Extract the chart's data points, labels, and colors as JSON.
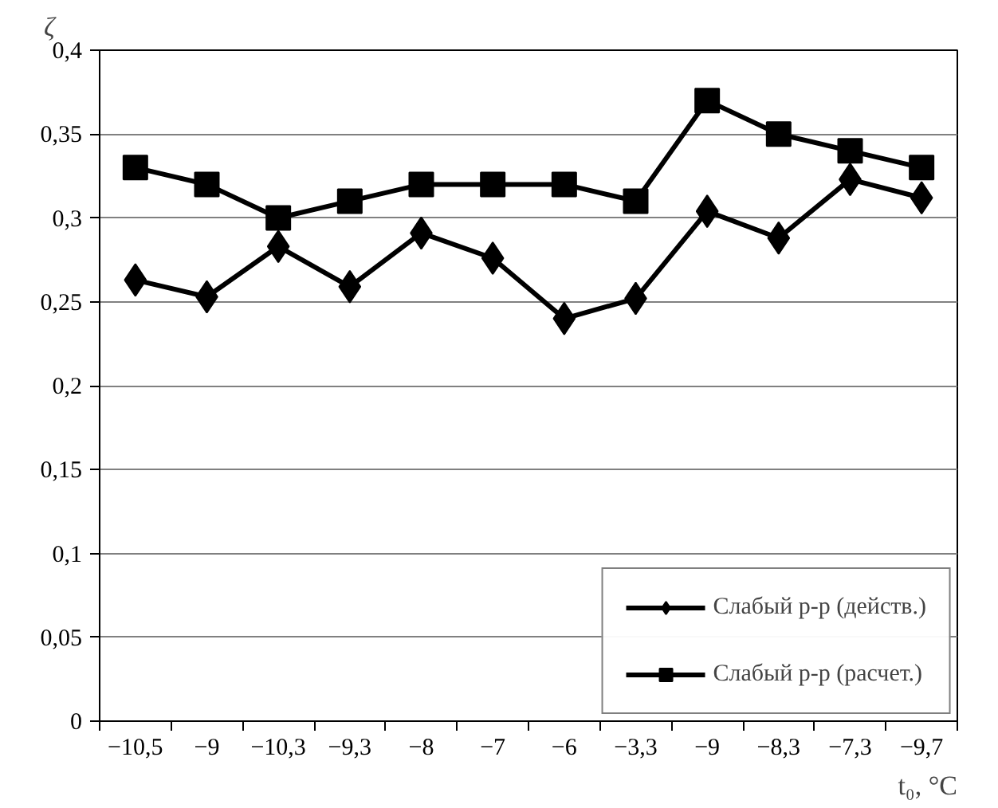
{
  "chart_data": {
    "type": "line",
    "xlabel": "t₀, °C",
    "ylabel": "ζ",
    "categories": [
      "−10,5",
      "−9",
      "−10,3",
      "−9,3",
      "−8",
      "−7",
      "−6",
      "−3,3",
      "−9",
      "−8,3",
      "−7,3",
      "−9,7"
    ],
    "series": [
      {
        "name": "Слабый р-р (действ.)",
        "color": "#000000",
        "marker": "diamond",
        "values": [
          0.263,
          0.253,
          0.283,
          0.259,
          0.291,
          0.276,
          0.24,
          0.252,
          0.304,
          0.288,
          0.323,
          0.312
        ]
      },
      {
        "name": "Слабый р-р (расчет.)",
        "color": "#000000",
        "marker": "square",
        "values": [
          0.33,
          0.32,
          0.3,
          0.31,
          0.32,
          0.32,
          0.32,
          0.31,
          0.37,
          0.35,
          0.34,
          0.33
        ]
      }
    ],
    "ylim": [
      0,
      0.4
    ],
    "yticks": [
      0,
      {
        "value": 0.05,
        "label": "0,05"
      },
      {
        "value": 0.1,
        "label": "0,1"
      },
      {
        "value": 0.15,
        "label": "0,15"
      },
      {
        "value": 0.2,
        "label": "0,2"
      },
      {
        "value": 0.25,
        "label": "0,25"
      },
      {
        "value": 0.3,
        "label": "0,3"
      },
      {
        "value": 0.35,
        "label": "0,35"
      },
      {
        "value": 0.4,
        "label": "0,4"
      }
    ],
    "grid": "y",
    "legend": "bottom right",
    "line_style": "solid"
  }
}
